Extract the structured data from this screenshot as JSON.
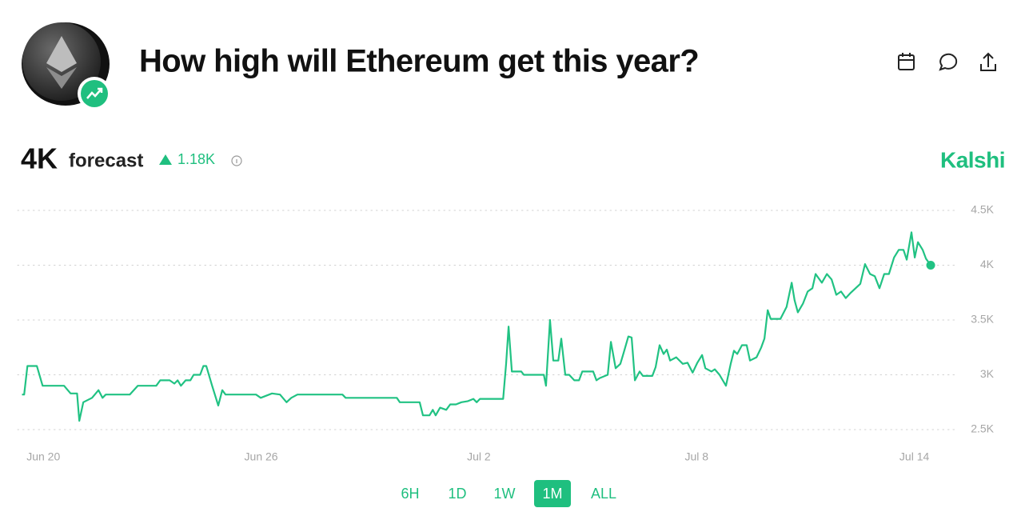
{
  "header": {
    "title": "How high will Ethereum get this year?"
  },
  "summary": {
    "value": "4K",
    "label": "forecast",
    "change": "1.18K",
    "brand": "Kalshi"
  },
  "ranges": {
    "options": [
      "6H",
      "1D",
      "1W",
      "1M",
      "ALL"
    ],
    "active": "1M"
  },
  "chart_data": {
    "type": "line",
    "color": "#21c283",
    "grid": true,
    "end_marker": true,
    "xlim": [
      -0.6,
      25.0
    ],
    "ylim": [
      2500,
      4500
    ],
    "xticks": [
      {
        "value": 0,
        "label": "Jun 20"
      },
      {
        "value": 6,
        "label": "Jun 26"
      },
      {
        "value": 12,
        "label": "Jul 2"
      },
      {
        "value": 18,
        "label": "Jul 8"
      },
      {
        "value": 24,
        "label": "Jul 14"
      }
    ],
    "yticks": [
      {
        "value": 2500,
        "label": "2.5K"
      },
      {
        "value": 3000,
        "label": "3K"
      },
      {
        "value": 3500,
        "label": "3.5K"
      },
      {
        "value": 4000,
        "label": "4K"
      },
      {
        "value": 4500,
        "label": "4.5K"
      }
    ],
    "x": [
      -0.59,
      -0.53,
      -0.44,
      -0.18,
      -0.02,
      0.57,
      0.75,
      0.93,
      0.99,
      1.1,
      1.34,
      1.52,
      1.63,
      1.72,
      2.38,
      2.6,
      3.11,
      3.22,
      3.48,
      3.61,
      3.7,
      3.79,
      3.92,
      4.05,
      4.14,
      4.32,
      4.41,
      4.49,
      4.65,
      4.82,
      4.93,
      5.02,
      5.86,
      5.99,
      6.3,
      6.52,
      6.7,
      6.83,
      7.0,
      8.24,
      8.33,
      9.74,
      9.82,
      10.37,
      10.46,
      10.64,
      10.73,
      10.81,
      10.93,
      11.1,
      11.21,
      11.37,
      11.52,
      11.7,
      11.85,
      11.94,
      12.03,
      12.67,
      12.75,
      12.82,
      12.91,
      13.17,
      13.24,
      13.79,
      13.85,
      13.96,
      14.05,
      14.19,
      14.27,
      14.38,
      14.49,
      14.63,
      14.76,
      14.85,
      15.15,
      15.24,
      15.33,
      15.55,
      15.64,
      15.77,
      15.9,
      15.99,
      16.12,
      16.21,
      16.3,
      16.43,
      16.52,
      16.78,
      16.87,
      16.98,
      17.09,
      17.18,
      17.27,
      17.44,
      17.62,
      17.75,
      17.89,
      18.02,
      18.15,
      18.24,
      18.41,
      18.5,
      18.63,
      18.81,
      18.94,
      19.03,
      19.12,
      19.25,
      19.38,
      19.47,
      19.65,
      19.78,
      19.87,
      19.96,
      20.04,
      20.31,
      20.48,
      20.62,
      20.7,
      20.79,
      20.93,
      21.06,
      21.19,
      21.28,
      21.45,
      21.59,
      21.72,
      21.85,
      21.98,
      22.11,
      22.25,
      22.38,
      22.51,
      22.64,
      22.78,
      22.91,
      23.04,
      23.17,
      23.3,
      23.44,
      23.57,
      23.7,
      23.79,
      23.92,
      24.01,
      24.1,
      24.23,
      24.32,
      24.45
    ],
    "values": [
      2820,
      2820,
      3080,
      3080,
      2900,
      2900,
      2830,
      2830,
      2580,
      2750,
      2790,
      2860,
      2790,
      2820,
      2820,
      2900,
      2900,
      2950,
      2950,
      2920,
      2950,
      2900,
      2950,
      2950,
      3000,
      3000,
      3080,
      3080,
      2900,
      2720,
      2860,
      2820,
      2820,
      2790,
      2830,
      2820,
      2750,
      2790,
      2820,
      2820,
      2790,
      2790,
      2750,
      2750,
      2630,
      2630,
      2680,
      2630,
      2700,
      2680,
      2730,
      2730,
      2750,
      2760,
      2780,
      2750,
      2780,
      2780,
      3100,
      3440,
      3030,
      3030,
      3000,
      3000,
      2900,
      3500,
      3130,
      3130,
      3330,
      3000,
      3000,
      2950,
      2950,
      3030,
      3030,
      2950,
      2970,
      3000,
      3300,
      3060,
      3100,
      3200,
      3350,
      3340,
      2950,
      3030,
      2990,
      2990,
      3070,
      3270,
      3190,
      3230,
      3130,
      3160,
      3100,
      3110,
      3020,
      3110,
      3180,
      3060,
      3030,
      3050,
      3000,
      2900,
      3100,
      3220,
      3190,
      3270,
      3270,
      3130,
      3160,
      3250,
      3330,
      3590,
      3510,
      3510,
      3620,
      3840,
      3680,
      3570,
      3650,
      3760,
      3790,
      3920,
      3840,
      3920,
      3870,
      3730,
      3760,
      3700,
      3750,
      3790,
      3830,
      4010,
      3920,
      3900,
      3790,
      3920,
      3920,
      4070,
      4140,
      4140,
      4050,
      4300,
      4070,
      4210,
      4140,
      4060,
      4000
    ]
  }
}
